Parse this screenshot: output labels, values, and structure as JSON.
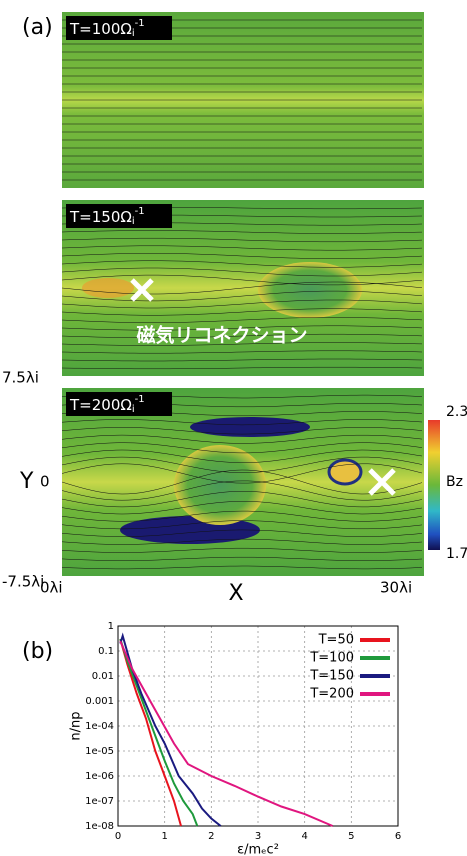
{
  "panel_a": {
    "label": "(a)",
    "frames": [
      {
        "main": "T=100Ω",
        "sub": "i",
        "sup": "-1"
      },
      {
        "main": "T=150Ω",
        "sub": "i",
        "sup": "-1"
      },
      {
        "main": "T=200Ω",
        "sub": "i",
        "sup": "-1"
      }
    ],
    "annotation": "磁気リコネクション",
    "y_top": "7.5λi",
    "y_mid": "0",
    "y_bottom": "-7.5λi",
    "y_label": "Y",
    "x_left": "0λi",
    "x_right": "30λi",
    "x_label": "X",
    "colorbar_max": "2.3",
    "colorbar_min": "1.7",
    "colorbar_label": "Bz"
  },
  "chart_data": {
    "type": "line",
    "label": "(b)",
    "xlabel": "ε/mₑc²",
    "ylabel": "n/np",
    "log_y": true,
    "grid": true,
    "legend": "top-right",
    "xlim": [
      0,
      6
    ],
    "xticks": [
      0,
      1,
      2,
      3,
      4,
      5,
      6
    ],
    "ylim": [
      1e-08,
      1
    ],
    "yticks": [
      1,
      0.1,
      0.01,
      0.001,
      {
        "value": 0.0001,
        "label": "1e-04"
      },
      {
        "value": 1e-05,
        "label": "1e-05"
      },
      {
        "value": 1e-06,
        "label": "1e-06"
      },
      {
        "value": 1e-07,
        "label": "1e-07"
      },
      {
        "value": 1e-08,
        "label": "1e-08"
      }
    ],
    "series": [
      {
        "name": "T=50",
        "color": "#e8141e",
        "x": [
          0.05,
          0.2,
          0.4,
          0.6,
          0.8,
          1.0,
          1.2,
          1.35
        ],
        "values": [
          0.3,
          0.03,
          0.002,
          0.0002,
          1e-05,
          1e-06,
          1e-07,
          1e-08
        ]
      },
      {
        "name": "T=100",
        "color": "#1f9a3c",
        "x": [
          0.05,
          0.2,
          0.4,
          0.6,
          0.8,
          1.0,
          1.2,
          1.4,
          1.6,
          1.7
        ],
        "values": [
          0.3,
          0.04,
          0.004,
          0.0004,
          4e-05,
          4e-06,
          5e-07,
          1e-07,
          3e-08,
          1e-08
        ]
      },
      {
        "name": "T=150",
        "color": "#1a1a80",
        "x": [
          0.05,
          0.1,
          0.3,
          0.5,
          0.8,
          1.0,
          1.3,
          1.6,
          1.8,
          2.0,
          2.2
        ],
        "values": [
          0.2,
          0.4,
          0.02,
          0.002,
          0.0001,
          2e-05,
          1e-06,
          2e-07,
          5e-08,
          2e-08,
          1e-08
        ]
      },
      {
        "name": "T=200",
        "color": "#e0167f",
        "x": [
          0.05,
          0.3,
          0.6,
          0.9,
          1.2,
          1.5,
          2.0,
          2.5,
          3.0,
          3.5,
          4.0,
          4.6
        ],
        "values": [
          0.25,
          0.02,
          0.002,
          0.0002,
          2e-05,
          3e-06,
          1e-06,
          4e-07,
          1.5e-07,
          6e-08,
          3e-08,
          1e-08
        ]
      }
    ]
  }
}
